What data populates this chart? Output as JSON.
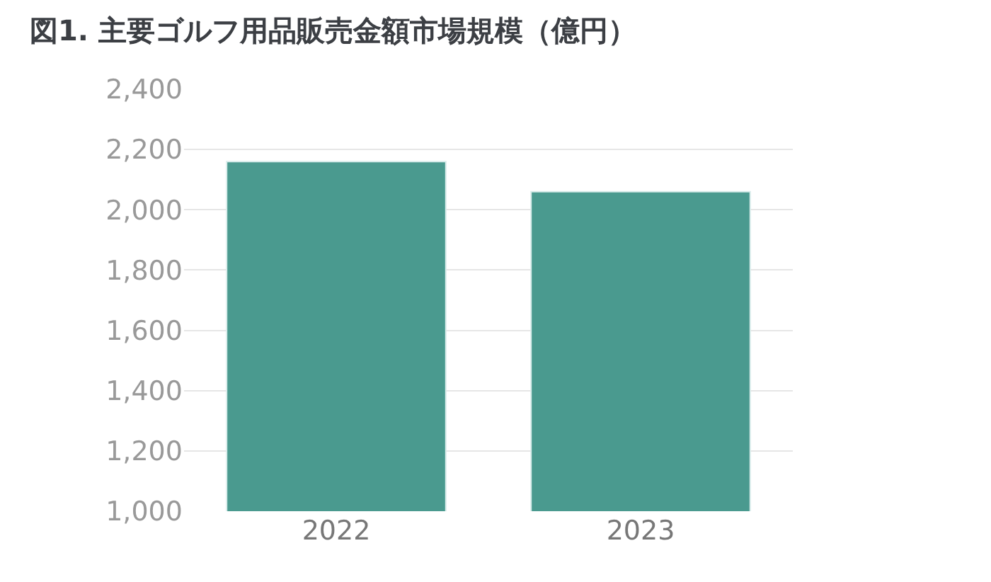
{
  "chart_data": {
    "type": "bar",
    "title": "図1. 主要ゴルフ用品販売金額市場規模（億円）",
    "categories": [
      "2022",
      "2023"
    ],
    "values": [
      2160,
      2060
    ],
    "color": "#4a9a8f",
    "ylim": [
      1000,
      2400
    ],
    "yticks": [
      {
        "value": 1000,
        "label": "1,000"
      },
      {
        "value": 1200,
        "label": "1,200"
      },
      {
        "value": 1400,
        "label": "1,400"
      },
      {
        "value": 1600,
        "label": "1,600"
      },
      {
        "value": 1800,
        "label": "1,800"
      },
      {
        "value": 2000,
        "label": "2,000"
      },
      {
        "value": 2200,
        "label": "2,200"
      },
      {
        "value": 2400,
        "label": "2,400"
      }
    ],
    "grid": "y"
  }
}
